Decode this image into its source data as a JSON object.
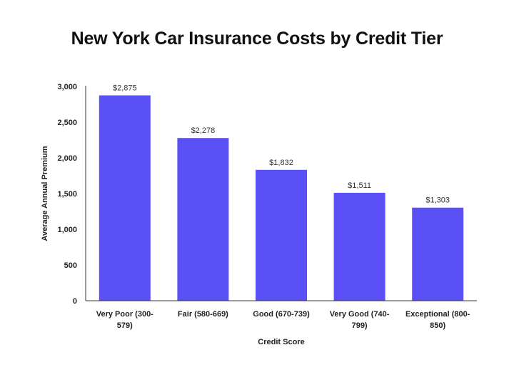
{
  "chart_data": {
    "type": "bar",
    "title": "New York Car Insurance Costs by Credit Tier",
    "xlabel": "Credit Score",
    "ylabel": "Average Annual Premium",
    "categories": [
      [
        "Very Poor (300-",
        "579)"
      ],
      [
        "Fair (580-669)"
      ],
      [
        "Good (670-739)"
      ],
      [
        "Very Good (740-",
        "799)"
      ],
      [
        "Exceptional (800-",
        "850)"
      ]
    ],
    "values": [
      2875,
      2278,
      1832,
      1511,
      1303
    ],
    "data_labels": [
      "$2,875",
      "$2,278",
      "$1,832",
      "$1,511",
      "$1,303"
    ],
    "yticks": [
      0,
      500,
      1000,
      1500,
      2000,
      2500,
      3000
    ],
    "ytick_labels": [
      "0",
      "500",
      "1,000",
      "1,500",
      "2,000",
      "2,500",
      "3,000"
    ],
    "ylim": [
      0,
      3000
    ],
    "grid": false,
    "legend": "none",
    "bar_color": "#5a50f5"
  }
}
